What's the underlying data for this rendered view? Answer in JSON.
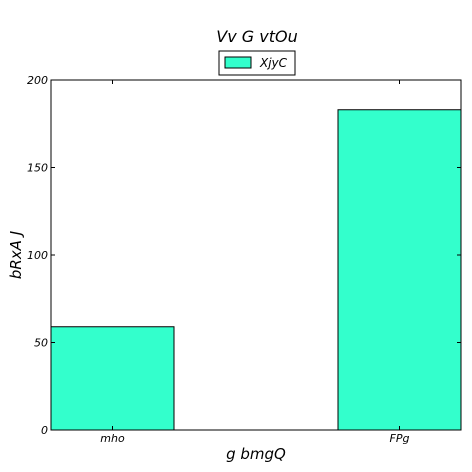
{
  "chart_data": {
    "type": "bar",
    "title": "Vv G vtOu",
    "xlabel": "g bmgQ",
    "ylabel": "bRxA J",
    "categories": [
      "mho",
      "FPg"
    ],
    "series": [
      {
        "name": "XjyC",
        "values": [
          59,
          183
        ],
        "color": "#33ffcc"
      }
    ],
    "ylim": [
      0,
      200
    ],
    "yticks": [
      0,
      50,
      100,
      150,
      200
    ],
    "ytick_labels": [
      "0",
      "50",
      "100",
      "150",
      "200"
    ],
    "grid": false,
    "legend_position": "top-center"
  }
}
